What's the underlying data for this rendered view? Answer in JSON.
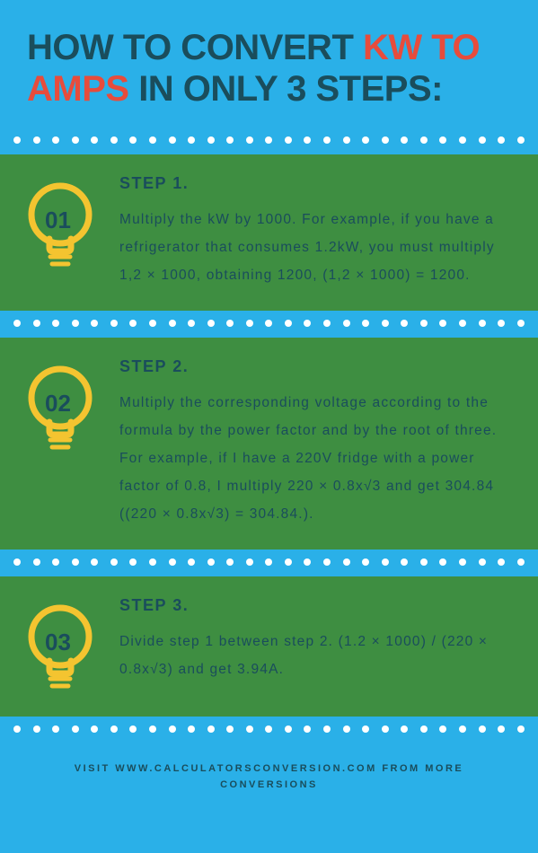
{
  "title_part1": "HOW TO CONVERT ",
  "title_kw": "KW",
  "title_part2": " ",
  "title_to_amps": "TO AMPS",
  "title_part3": " IN ONLY 3 STEPS:",
  "colors": {
    "page_bg": "#2ab0e8",
    "step_bg": "#3e8e41",
    "heading_dark": "#1a4d5c",
    "accent_red": "#e74c3c",
    "bulb_yellow": "#f4c430",
    "dot_white": "#ffffff"
  },
  "typography": {
    "title_fontsize": 40,
    "step_heading_fontsize": 18,
    "step_body_fontsize": 15.5,
    "footer_fontsize": 11
  },
  "dot_count": 27,
  "steps": [
    {
      "num": "01",
      "heading": "STEP 1.",
      "body": "Multiply the kW by 1000. For example, if you have a refrigerator that consumes 1.2kW, you must multiply 1,2 × 1000, obtaining 1200, (1,2 × 1000) = 1200."
    },
    {
      "num": "02",
      "heading": "STEP 2.",
      "body": "Multiply the corresponding voltage according to the formula by the power factor and by the root of three. For example, if I have a 220V fridge with a power factor of 0.8, I multiply 220 × 0.8x√3 and get 304.84 ((220 × 0.8x√3) = 304.84.)."
    },
    {
      "num": "03",
      "heading": "STEP 3.",
      "body": "Divide step 1 between step 2. (1.2 × 1000) / (220 × 0.8x√3) and get 3.94A."
    }
  ],
  "footer": "VISIT WWW.CALCULATORSCONVERSION.COM FROM MORE CONVERSIONS"
}
